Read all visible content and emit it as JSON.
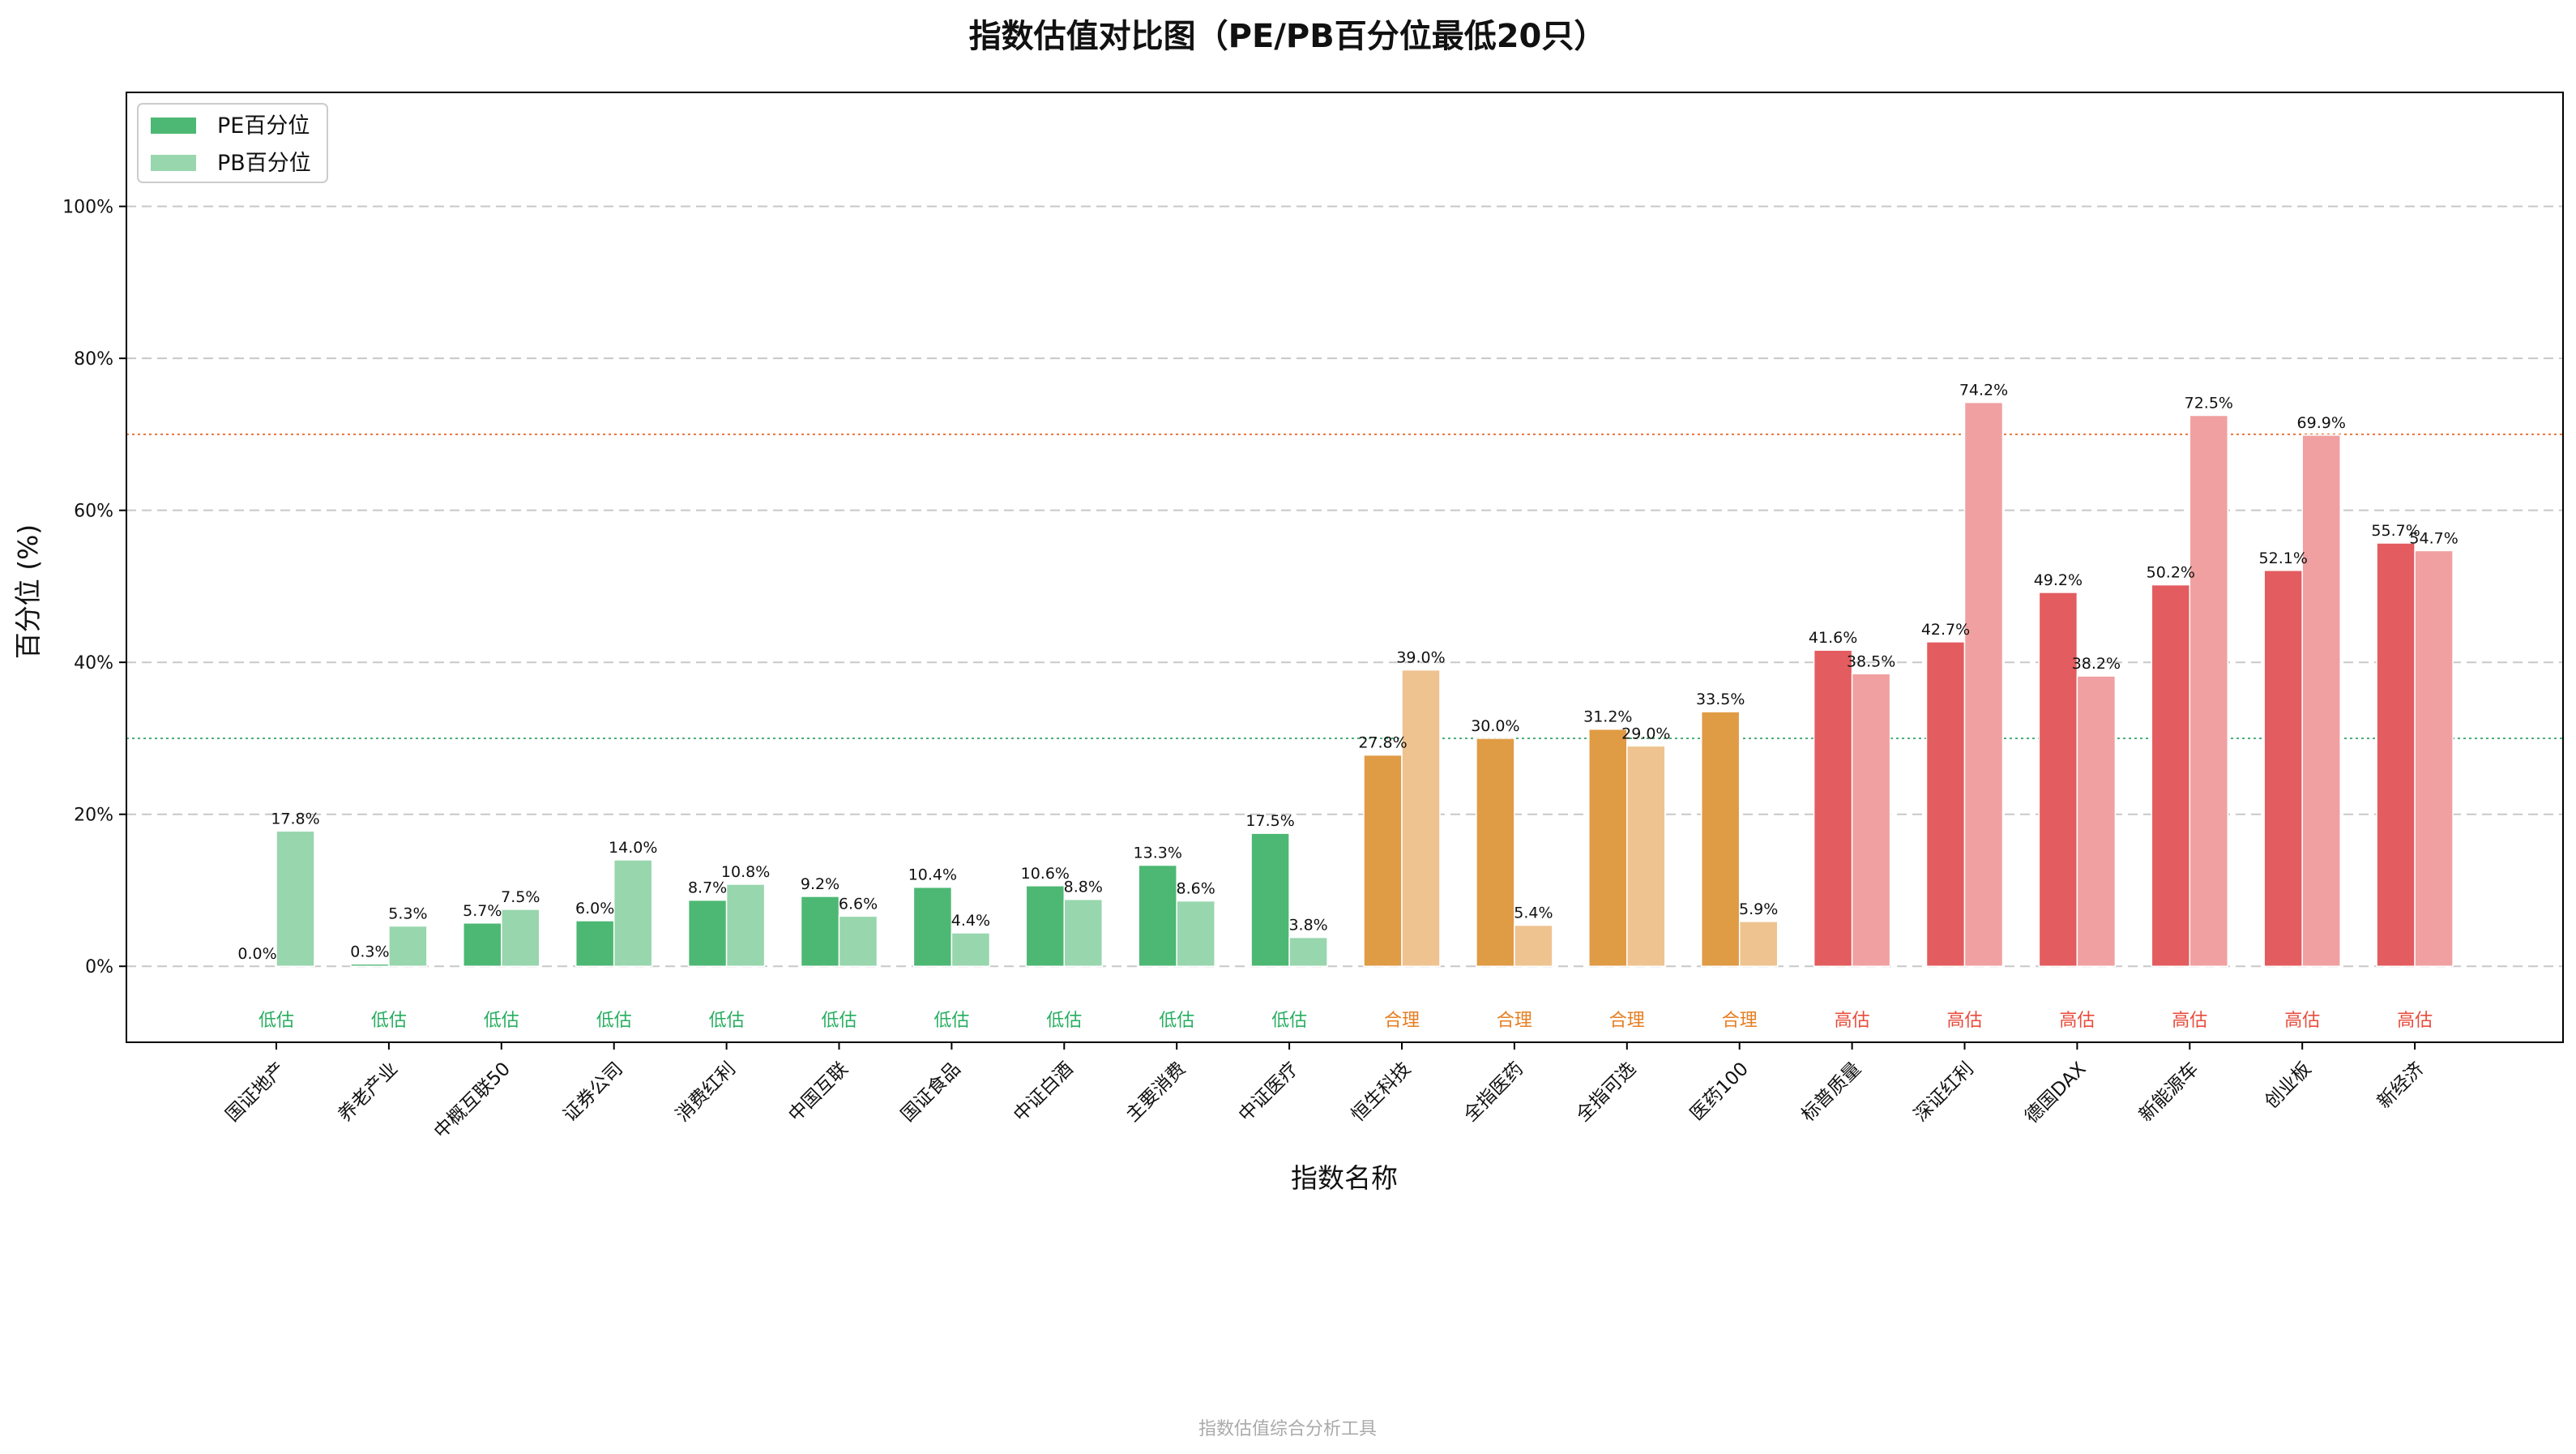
{
  "footer": "指数估值综合分析工具",
  "chart_data": {
    "type": "bar",
    "title": "指数估值对比图（PE/PB百分位最低20只）",
    "xlabel": "指数名称",
    "ylabel": "百分位 (%)",
    "ylim": [
      -10,
      115
    ],
    "yticks": [
      0,
      20,
      40,
      60,
      80,
      100
    ],
    "ytick_labels": [
      "0%",
      "20%",
      "40%",
      "60%",
      "80%",
      "100%"
    ],
    "grid": "horizontal-dashed",
    "legend_position": "top-left",
    "reference_lines": [
      {
        "y": 70,
        "color": "#E8743B"
      },
      {
        "y": 30,
        "color": "#4CAF7A"
      }
    ],
    "categories": [
      "国证地产",
      "养老产业",
      "中概互联50",
      "证券公司",
      "消费红利",
      "中国互联",
      "国证食品",
      "中证白酒",
      "主要消费",
      "中证医疗",
      "恒生科技",
      "全指医药",
      "全指可选",
      "医药100",
      "标普质量",
      "深证红利",
      "德国DAX",
      "新能源车",
      "创业板",
      "新经济"
    ],
    "series": [
      {
        "name": "PE百分位",
        "values": [
          0.0,
          0.3,
          5.7,
          6.0,
          8.7,
          9.2,
          10.4,
          10.6,
          13.3,
          17.5,
          27.8,
          30.0,
          31.2,
          33.5,
          41.6,
          42.7,
          49.2,
          50.2,
          52.1,
          55.7
        ]
      },
      {
        "name": "PB百分位",
        "values": [
          17.8,
          5.3,
          7.5,
          14.0,
          10.8,
          6.6,
          4.4,
          8.8,
          8.6,
          3.8,
          39.0,
          5.4,
          29.0,
          5.9,
          38.5,
          74.2,
          38.2,
          72.5,
          69.9,
          54.7
        ]
      }
    ],
    "pe_labels": [
      "0.0%",
      "0.3%",
      "5.7%",
      "6.0%",
      "8.7%",
      "9.2%",
      "10.4%",
      "10.6%",
      "13.3%",
      "17.5%",
      "27.8%",
      "30.0%",
      "31.2%",
      "33.5%",
      "41.6%",
      "42.7%",
      "49.2%",
      "50.2%",
      "52.1%",
      "55.7%"
    ],
    "pb_labels": [
      "17.8%",
      "5.3%",
      "7.5%",
      "14.0%",
      "10.8%",
      "6.6%",
      "4.4%",
      "8.8%",
      "8.6%",
      "3.8%",
      "39.0%",
      "5.4%",
      "29.0%",
      "5.9%",
      "38.5%",
      "74.2%",
      "38.2%",
      "72.5%",
      "69.9%",
      "54.7%"
    ],
    "status": [
      "低估",
      "低估",
      "低估",
      "低估",
      "低估",
      "低估",
      "低估",
      "低估",
      "低估",
      "低估",
      "合理",
      "合理",
      "合理",
      "合理",
      "高估",
      "高估",
      "高估",
      "高估",
      "高估",
      "高估"
    ],
    "status_colors": {
      "低估": {
        "pe": "#4DB873",
        "pb": "#98D6AD",
        "text": "#27AE60"
      },
      "合理": {
        "pe": "#E09B45",
        "pb": "#EEC390",
        "text": "#E67E22"
      },
      "高估": {
        "pe": "#E35C5F",
        "pb": "#F0A0A1",
        "text": "#E74C3C"
      }
    },
    "legend": [
      {
        "name": "PE百分位",
        "color": "#4DB873"
      },
      {
        "name": "PB百分位",
        "color": "#98D6AD"
      }
    ]
  }
}
